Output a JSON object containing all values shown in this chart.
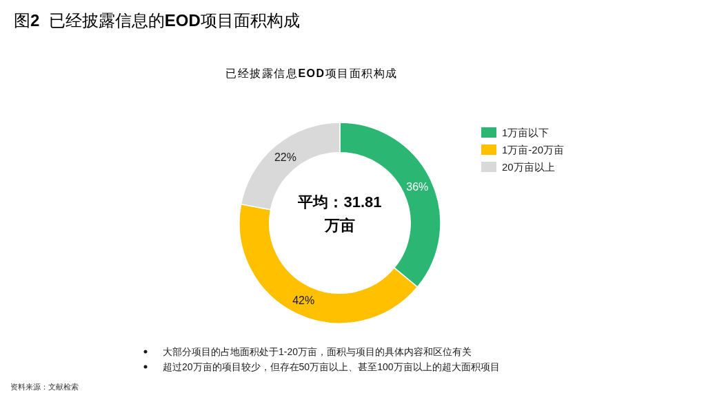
{
  "chart_data": {
    "type": "donut",
    "title": "图2  已经披露信息的EOD项目面积构成",
    "subtitle": "已经披露信息EOD项目面积构成",
    "categories": [
      "1万亩以下",
      "1万亩-20万亩",
      "20万亩以上"
    ],
    "values": [
      36,
      42,
      22
    ],
    "colors": [
      "#2bb673",
      "#ffc000",
      "#d9d9d9"
    ],
    "value_labels": [
      "36%",
      "42%",
      "22%"
    ],
    "legend": "right",
    "annotations": [
      "平均：31.81 万亩",
      "大部分项目的占地面积处于1-20万亩，面积与项目的具体内容和区位有关",
      "超过20万亩的项目较少，但存在50万亩以上、甚至100万亩以上的超大面积项目",
      "资料来源：文献检索"
    ]
  }
}
